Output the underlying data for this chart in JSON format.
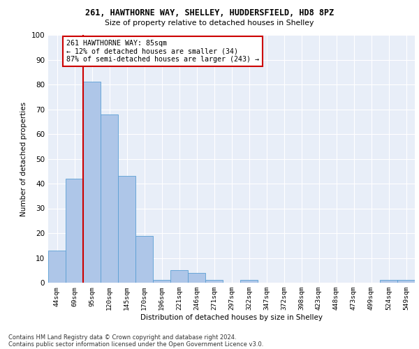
{
  "title1": "261, HAWTHORNE WAY, SHELLEY, HUDDERSFIELD, HD8 8PZ",
  "title2": "Size of property relative to detached houses in Shelley",
  "xlabel": "Distribution of detached houses by size in Shelley",
  "ylabel": "Number of detached properties",
  "categories": [
    "44sqm",
    "69sqm",
    "95sqm",
    "120sqm",
    "145sqm",
    "170sqm",
    "196sqm",
    "221sqm",
    "246sqm",
    "271sqm",
    "297sqm",
    "322sqm",
    "347sqm",
    "372sqm",
    "398sqm",
    "423sqm",
    "448sqm",
    "473sqm",
    "499sqm",
    "524sqm",
    "549sqm"
  ],
  "values": [
    13,
    42,
    81,
    68,
    43,
    19,
    1,
    5,
    4,
    1,
    0,
    1,
    0,
    0,
    0,
    0,
    0,
    0,
    0,
    1,
    1
  ],
  "bar_color": "#aec6e8",
  "bar_edge_color": "#5a9fd4",
  "vline_x_index": 1,
  "vline_color": "#cc0000",
  "annotation_text": "261 HAWTHORNE WAY: 85sqm\n← 12% of detached houses are smaller (34)\n87% of semi-detached houses are larger (243) →",
  "annotation_box_color": "#ffffff",
  "annotation_box_edge": "#cc0000",
  "ylim": [
    0,
    100
  ],
  "yticks": [
    0,
    10,
    20,
    30,
    40,
    50,
    60,
    70,
    80,
    90,
    100
  ],
  "bg_color": "#e8eef8",
  "footer1": "Contains HM Land Registry data © Crown copyright and database right 2024.",
  "footer2": "Contains public sector information licensed under the Open Government Licence v3.0."
}
